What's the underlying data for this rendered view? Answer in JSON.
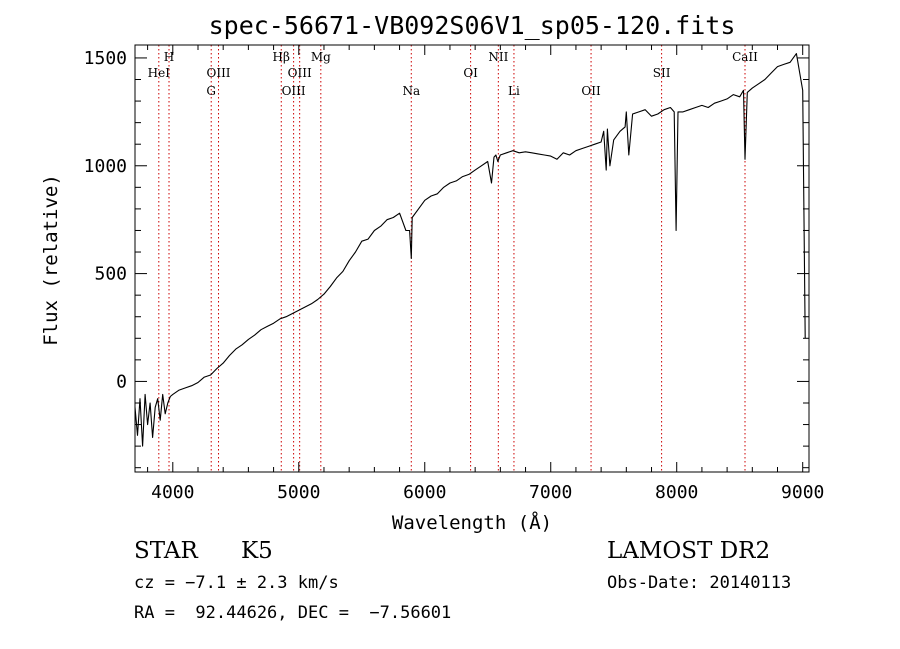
{
  "chart_data": {
    "type": "line",
    "title": "spec-56671-VB092S06V1_sp05-120.fits",
    "xlabel": "Wavelength (Å)",
    "ylabel": "Flux (relative)",
    "xlim": [
      3700,
      9050
    ],
    "ylim": [
      -420,
      1560
    ],
    "x_ticks": [
      4000,
      5000,
      6000,
      7000,
      8000,
      9000
    ],
    "y_ticks": [
      0,
      500,
      1000,
      1500
    ],
    "grid": false,
    "series": [
      {
        "x": [
          3700,
          3720,
          3740,
          3760,
          3780,
          3800,
          3820,
          3840,
          3860,
          3880,
          3900,
          3920,
          3940,
          3960,
          3980,
          4000,
          4050,
          4100,
          4150,
          4200,
          4250,
          4300,
          4350,
          4400,
          4450,
          4500,
          4550,
          4600,
          4650,
          4700,
          4750,
          4800,
          4850,
          4900,
          4950,
          5000,
          5050,
          5100,
          5150,
          5200,
          5250,
          5300,
          5350,
          5400,
          5450,
          5500,
          5550,
          5600,
          5650,
          5700,
          5750,
          5800,
          5850,
          5880,
          5893,
          5900,
          5950,
          6000,
          6050,
          6100,
          6150,
          6200,
          6250,
          6300,
          6350,
          6400,
          6450,
          6500,
          6530,
          6550,
          6565,
          6580,
          6600,
          6650,
          6700,
          6750,
          6800,
          6850,
          6900,
          6950,
          7000,
          7050,
          7100,
          7150,
          7200,
          7250,
          7300,
          7350,
          7400,
          7420,
          7440,
          7450,
          7470,
          7500,
          7550,
          7590,
          7600,
          7620,
          7650,
          7700,
          7750,
          7800,
          7850,
          7900,
          7950,
          7980,
          7995,
          8010,
          8050,
          8100,
          8150,
          8200,
          8250,
          8300,
          8350,
          8400,
          8450,
          8500,
          8530,
          8542,
          8560,
          8600,
          8650,
          8700,
          8750,
          8800,
          8850,
          8900,
          8950,
          9000,
          9020
        ],
        "y": [
          -120,
          -250,
          -80,
          -300,
          -60,
          -200,
          -100,
          -260,
          -120,
          -80,
          -180,
          -60,
          -150,
          -100,
          -70,
          -60,
          -40,
          -30,
          -20,
          -5,
          20,
          30,
          60,
          85,
          120,
          150,
          170,
          195,
          215,
          240,
          255,
          270,
          290,
          300,
          315,
          330,
          345,
          360,
          380,
          405,
          440,
          480,
          510,
          560,
          600,
          650,
          660,
          700,
          720,
          750,
          760,
          780,
          700,
          700,
          570,
          760,
          800,
          840,
          860,
          870,
          900,
          920,
          930,
          950,
          960,
          980,
          1000,
          1020,
          920,
          1040,
          1050,
          1020,
          1050,
          1060,
          1070,
          1060,
          1065,
          1060,
          1055,
          1050,
          1045,
          1030,
          1060,
          1050,
          1070,
          1080,
          1090,
          1100,
          1110,
          1160,
          980,
          1170,
          1000,
          1120,
          1160,
          1180,
          1250,
          1050,
          1240,
          1250,
          1260,
          1230,
          1240,
          1260,
          1270,
          1250,
          700,
          1250,
          1250,
          1260,
          1270,
          1280,
          1270,
          1290,
          1300,
          1310,
          1330,
          1320,
          1350,
          1030,
          1340,
          1360,
          1380,
          1400,
          1430,
          1460,
          1470,
          1480,
          1520,
          1350,
          200
        ]
      }
    ],
    "line_markers": [
      {
        "label": "H",
        "x": 3970,
        "row": 0
      },
      {
        "label": "HeI",
        "x": 3889,
        "row": 1
      },
      {
        "label": "OIII",
        "x": 4363,
        "row": 1
      },
      {
        "label": "G",
        "x": 4305,
        "row": 2
      },
      {
        "label": "Hβ",
        "x": 4861,
        "row": 0
      },
      {
        "label": "OIII",
        "x": 5007,
        "row": 1
      },
      {
        "label": "OIII",
        "x": 4959,
        "row": 2
      },
      {
        "label": "Mg",
        "x": 5175,
        "row": 0
      },
      {
        "label": "Na",
        "x": 5893,
        "row": 2
      },
      {
        "label": "OI",
        "x": 6364,
        "row": 1
      },
      {
        "label": "NII",
        "x": 6584,
        "row": 0
      },
      {
        "label": "Li",
        "x": 6708,
        "row": 2
      },
      {
        "label": "OII",
        "x": 7320,
        "row": 2
      },
      {
        "label": "SII",
        "x": 7880,
        "row": 1
      },
      {
        "label": "CaII",
        "x": 8542,
        "row": 0
      }
    ],
    "marker_color": "#cc0000"
  },
  "footer": {
    "class_label": "STAR",
    "subclass": "K5",
    "survey": "LAMOST DR2",
    "cz": "cz = −7.1 ± 2.3 km/s",
    "obs_date": "Obs-Date: 20140113",
    "coords": "RA =  92.44626, DEC =  −7.56601"
  }
}
